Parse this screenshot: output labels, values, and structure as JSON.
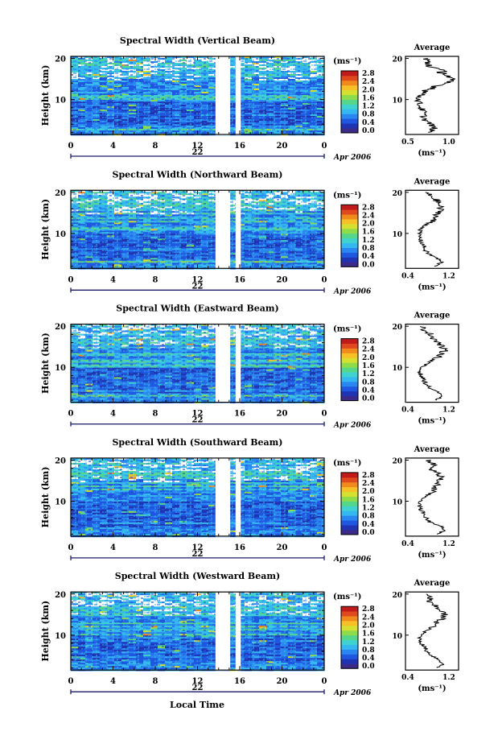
{
  "figure": {
    "date_label": "Apr 2006",
    "x_axis_title": "Local Time"
  },
  "chart_data": [
    {
      "type": "heatmap",
      "title": "Spectral Width (Vertical Beam)",
      "ylabel": "Height (km)",
      "y_ticks": [
        "20",
        "10"
      ],
      "ylim": [
        1.5,
        20.5
      ],
      "x_ticks": [
        "0",
        "4",
        "8",
        "12",
        "16",
        "20",
        "0"
      ],
      "xlim": [
        0,
        24
      ],
      "date_tick": "22",
      "colorbar_unit": "(ms⁻¹)",
      "colorbar_ticks": [
        "2.8",
        "2.4",
        "2.0",
        "1.6",
        "1.2",
        "0.8",
        "0.4",
        "0.0"
      ],
      "gaps_local_time": [
        [
          13.7,
          15.1
        ],
        [
          15.6,
          16.1
        ]
      ],
      "avg_title": "Average",
      "avg_x_ticks": [
        "0.5",
        "1.0"
      ],
      "avg_xlim": [
        0.4,
        1.1
      ],
      "avg_unit": "(ms⁻¹)",
      "average_profile": [
        [
          20,
          0.66
        ],
        [
          19,
          0.69
        ],
        [
          18,
          0.74
        ],
        [
          17,
          0.86
        ],
        [
          16,
          0.95
        ],
        [
          15,
          0.98
        ],
        [
          14,
          0.93
        ],
        [
          13,
          0.8
        ],
        [
          12,
          0.68
        ],
        [
          11,
          0.6
        ],
        [
          10,
          0.57
        ],
        [
          9,
          0.58
        ],
        [
          8,
          0.6
        ],
        [
          7,
          0.64
        ],
        [
          6,
          0.64
        ],
        [
          5,
          0.66
        ],
        [
          4,
          0.73
        ],
        [
          3,
          0.78
        ],
        [
          2,
          0.7
        ]
      ]
    },
    {
      "type": "heatmap",
      "title": "Spectral Width (Northward Beam)",
      "ylabel": "Height (km)",
      "y_ticks": [
        "20",
        "10"
      ],
      "ylim": [
        1.5,
        20.5
      ],
      "x_ticks": [
        "0",
        "4",
        "8",
        "12",
        "16",
        "20",
        "0"
      ],
      "xlim": [
        0,
        24
      ],
      "date_tick": "22",
      "colorbar_unit": "(ms⁻¹)",
      "colorbar_ticks": [
        "2.8",
        "2.4",
        "2.0",
        "1.6",
        "1.2",
        "0.8",
        "0.4",
        "0.0"
      ],
      "gaps_local_time": [
        [
          13.7,
          15.1
        ],
        [
          15.6,
          16.1
        ]
      ],
      "avg_title": "Average",
      "avg_x_ticks": [
        "0.4",
        "1.2"
      ],
      "avg_xlim": [
        0.3,
        1.4
      ],
      "avg_unit": "(ms⁻¹)",
      "average_profile": [
        [
          20,
          0.7
        ],
        [
          19,
          0.85
        ],
        [
          18,
          0.95
        ],
        [
          17,
          1.0
        ],
        [
          16,
          1.02
        ],
        [
          15,
          1.0
        ],
        [
          14,
          0.92
        ],
        [
          13,
          0.85
        ],
        [
          12,
          0.72
        ],
        [
          11,
          0.62
        ],
        [
          10,
          0.58
        ],
        [
          9,
          0.6
        ],
        [
          8,
          0.62
        ],
        [
          7,
          0.68
        ],
        [
          6,
          0.7
        ],
        [
          5,
          0.78
        ],
        [
          4,
          0.95
        ],
        [
          3,
          1.05
        ],
        [
          2,
          0.9
        ]
      ]
    },
    {
      "type": "heatmap",
      "title": "Spectral Width (Eastward Beam)",
      "ylabel": "Height (km)",
      "y_ticks": [
        "20",
        "10"
      ],
      "ylim": [
        1.5,
        20.5
      ],
      "x_ticks": [
        "0",
        "4",
        "8",
        "12",
        "16",
        "20",
        "0"
      ],
      "xlim": [
        0,
        24
      ],
      "date_tick": "22",
      "colorbar_unit": "(ms⁻¹)",
      "colorbar_ticks": [
        "2.8",
        "2.4",
        "2.0",
        "1.6",
        "1.2",
        "0.8",
        "0.4",
        "0.0"
      ],
      "gaps_local_time": [
        [
          13.7,
          15.1
        ],
        [
          15.6,
          16.1
        ]
      ],
      "avg_title": "Average",
      "avg_x_ticks": [
        "0.4",
        "1.2"
      ],
      "avg_xlim": [
        0.3,
        1.4
      ],
      "avg_unit": "(ms⁻¹)",
      "average_profile": [
        [
          20,
          0.6
        ],
        [
          19,
          0.72
        ],
        [
          18,
          0.82
        ],
        [
          17,
          0.9
        ],
        [
          16,
          0.98
        ],
        [
          15,
          1.05
        ],
        [
          14,
          1.1
        ],
        [
          13,
          1.05
        ],
        [
          12,
          0.9
        ],
        [
          11,
          0.75
        ],
        [
          10,
          0.62
        ],
        [
          9,
          0.6
        ],
        [
          8,
          0.62
        ],
        [
          7,
          0.68
        ],
        [
          6,
          0.72
        ],
        [
          5,
          0.8
        ],
        [
          4,
          0.98
        ],
        [
          3,
          1.02
        ],
        [
          2,
          0.95
        ]
      ]
    },
    {
      "type": "heatmap",
      "title": "Spectral Width (Southward Beam)",
      "ylabel": "Height (km)",
      "y_ticks": [
        "20",
        "10"
      ],
      "ylim": [
        1.5,
        20.5
      ],
      "x_ticks": [
        "0",
        "4",
        "8",
        "12",
        "16",
        "20",
        "0"
      ],
      "xlim": [
        0,
        24
      ],
      "date_tick": "22",
      "colorbar_unit": "(ms⁻¹)",
      "colorbar_ticks": [
        "2.8",
        "2.4",
        "2.0",
        "1.6",
        "1.2",
        "0.8",
        "0.4",
        "0.0"
      ],
      "gaps_local_time": [
        [
          13.7,
          15.1
        ],
        [
          15.6,
          16.1
        ]
      ],
      "avg_title": "Average",
      "avg_x_ticks": [
        "0.4",
        "1.2"
      ],
      "avg_xlim": [
        0.3,
        1.4
      ],
      "avg_unit": "(ms⁻¹)",
      "average_profile": [
        [
          20,
          0.78
        ],
        [
          19,
          0.9
        ],
        [
          18,
          0.8
        ],
        [
          17,
          0.95
        ],
        [
          16,
          1.02
        ],
        [
          15,
          1.0
        ],
        [
          14,
          0.95
        ],
        [
          13,
          0.9
        ],
        [
          12,
          0.82
        ],
        [
          11,
          0.7
        ],
        [
          10,
          0.62
        ],
        [
          9,
          0.58
        ],
        [
          8,
          0.62
        ],
        [
          7,
          0.68
        ],
        [
          6,
          0.72
        ],
        [
          5,
          0.8
        ],
        [
          4,
          1.05
        ],
        [
          3,
          1.1
        ],
        [
          2,
          0.95
        ]
      ]
    },
    {
      "type": "heatmap",
      "title": "Spectral Width (Westward Beam)",
      "ylabel": "Height (km)",
      "y_ticks": [
        "20",
        "10"
      ],
      "ylim": [
        1.5,
        20.5
      ],
      "x_ticks": [
        "0",
        "4",
        "8",
        "12",
        "16",
        "20",
        "0"
      ],
      "xlim": [
        0,
        24
      ],
      "date_tick": "22",
      "colorbar_unit": "(ms⁻¹)",
      "colorbar_ticks": [
        "2.8",
        "2.4",
        "2.0",
        "1.6",
        "1.2",
        "0.8",
        "0.4",
        "0.0"
      ],
      "gaps_local_time": [
        [
          13.7,
          15.1
        ],
        [
          15.6,
          16.1
        ]
      ],
      "avg_title": "Average",
      "avg_x_ticks": [
        "0.4",
        "1.2"
      ],
      "avg_xlim": [
        0.3,
        1.4
      ],
      "avg_unit": "(ms⁻¹)",
      "average_profile": [
        [
          20,
          0.7
        ],
        [
          19,
          0.82
        ],
        [
          18,
          0.78
        ],
        [
          17,
          0.92
        ],
        [
          16,
          1.05
        ],
        [
          15,
          1.1
        ],
        [
          14,
          1.05
        ],
        [
          13,
          0.95
        ],
        [
          12,
          0.85
        ],
        [
          11,
          0.72
        ],
        [
          10,
          0.62
        ],
        [
          9,
          0.6
        ],
        [
          8,
          0.63
        ],
        [
          7,
          0.7
        ],
        [
          6,
          0.75
        ],
        [
          5,
          0.85
        ],
        [
          4,
          1.0
        ],
        [
          3,
          1.08
        ],
        [
          2,
          0.95
        ]
      ]
    }
  ],
  "colormap": [
    "#3b2a87",
    "#1f33b3",
    "#1f57e0",
    "#2a86f0",
    "#35b8f0",
    "#3fd2d0",
    "#55d68a",
    "#8fdc4a",
    "#d6e030",
    "#f6c126",
    "#f08a1c",
    "#e0481e",
    "#c11a1a"
  ]
}
